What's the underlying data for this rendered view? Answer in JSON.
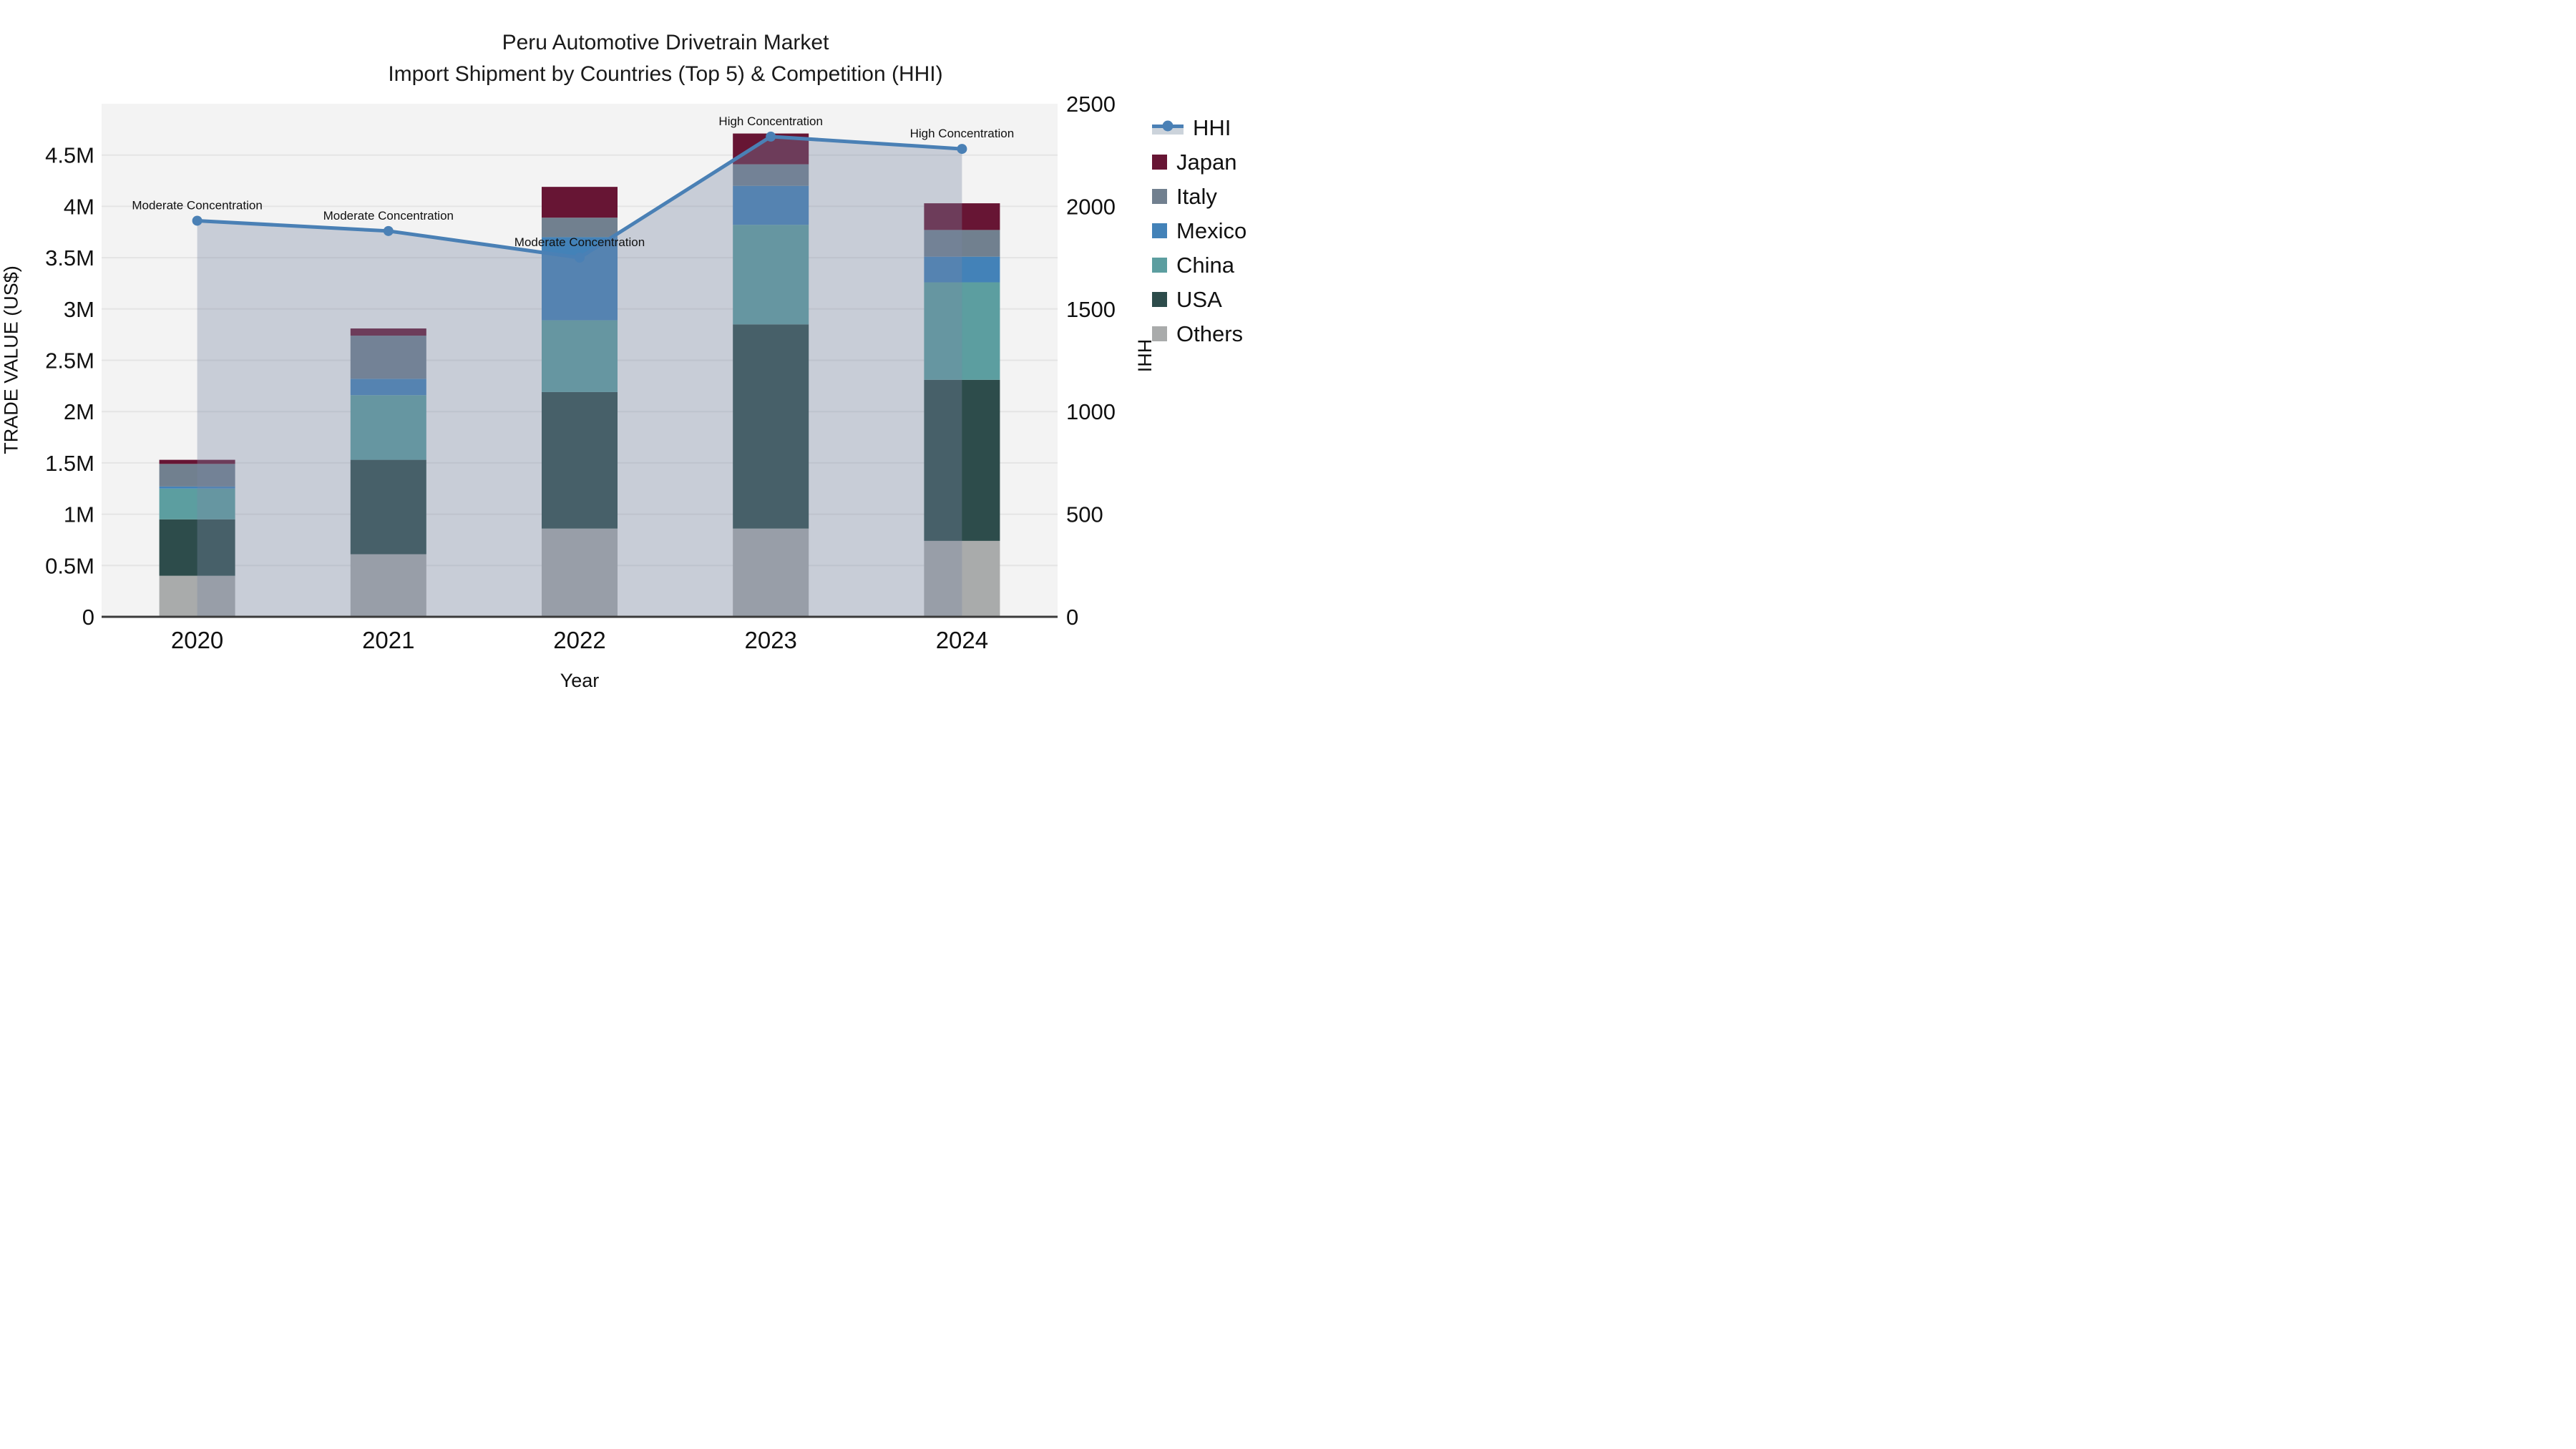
{
  "title": {
    "line1": "Peru Automotive Drivetrain Market",
    "line2": "Import Shipment by Countries (Top 5) & Competition (HHI)"
  },
  "axes": {
    "x_label": "Year",
    "y_left_label": "TRADE VALUE (US$)",
    "y_right_label": "HHI",
    "y_left_ticks": [
      "0",
      "0.5M",
      "1M",
      "1.5M",
      "2M",
      "2.5M",
      "3M",
      "3.5M",
      "4M",
      "4.5M"
    ],
    "y_right_ticks": [
      "0",
      "500",
      "1000",
      "1500",
      "2000",
      "2500"
    ]
  },
  "colors": {
    "plot_background": "#f3f3f3",
    "gridline": "#e4e4e4",
    "axis_line": "#3a3a3a",
    "text": "#111111",
    "hhi_line": "#4A80B5",
    "hhi_area_overlay": "rgba(119,136,162,0.35)"
  },
  "legend": {
    "entries": [
      "HHI",
      "Japan",
      "Italy",
      "Mexico",
      "China",
      "USA",
      "Others"
    ]
  },
  "chart_data": {
    "type": "bar+line",
    "title": "Peru Automotive Drivetrain Market — Import Shipment by Countries (Top 5) & Competition (HHI)",
    "categories": [
      "2020",
      "2021",
      "2022",
      "2023",
      "2024"
    ],
    "xlabel": "Year",
    "ylabel_left": "TRADE VALUE (US$)",
    "ylabel_right": "HHI",
    "ylim_left_usd": [
      0,
      5000000
    ],
    "ylim_right_hhi": [
      0,
      2500
    ],
    "grid": true,
    "legend_position": "right",
    "bar_value_unit": "million US$",
    "stack_order_bottom_to_top": [
      "Others",
      "USA",
      "China",
      "Mexico",
      "Italy",
      "Japan"
    ],
    "series": [
      {
        "name": "Japan",
        "color": "#671534",
        "values": [
          0.04,
          0.07,
          0.3,
          0.3,
          0.26
        ]
      },
      {
        "name": "Italy",
        "color": "#71808F",
        "values": [
          0.22,
          0.42,
          0.19,
          0.21,
          0.26
        ]
      },
      {
        "name": "Mexico",
        "color": "#4382B8",
        "values": [
          0.02,
          0.16,
          0.81,
          0.38,
          0.25
        ]
      },
      {
        "name": "China",
        "color": "#5C9EA0",
        "values": [
          0.3,
          0.63,
          0.7,
          0.97,
          0.95
        ]
      },
      {
        "name": "USA",
        "color": "#2D4C4B",
        "values": [
          0.55,
          0.92,
          1.33,
          1.99,
          1.57
        ]
      },
      {
        "name": "Others",
        "color": "#A9ABAB",
        "values": [
          0.4,
          0.61,
          0.86,
          0.86,
          0.74
        ]
      }
    ],
    "bar_totals": [
      1.53,
      2.81,
      4.19,
      4.71,
      4.03
    ],
    "hhi_line": {
      "name": "HHI",
      "values": [
        1930,
        1880,
        1750,
        2340,
        2280
      ],
      "annotations": [
        "Moderate Concentration",
        "Moderate Concentration",
        "Moderate Concentration",
        "High Concentration",
        "High Concentration"
      ]
    }
  }
}
